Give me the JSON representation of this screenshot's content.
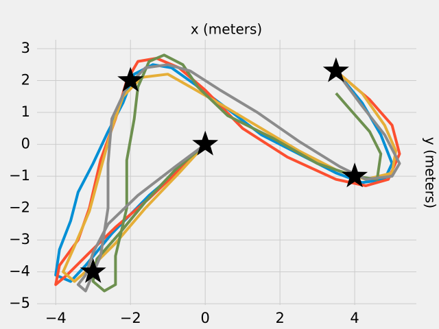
{
  "chart_data": {
    "type": "line",
    "title": "x (meters)",
    "y_label": "y (meters)",
    "xlim": [
      -4.5,
      5.65
    ],
    "ylim": [
      -5.04,
      3.28
    ],
    "xticks": [
      {
        "value": -4,
        "label": "−4"
      },
      {
        "value": -2,
        "label": "−2"
      },
      0,
      2,
      4
    ],
    "yticks": [
      {
        "value": -5,
        "label": "−5"
      },
      {
        "value": -4,
        "label": "−4"
      },
      {
        "value": -3,
        "label": "−3"
      },
      {
        "value": -2,
        "label": "−2"
      },
      {
        "value": -1,
        "label": "−1"
      },
      0,
      1,
      2,
      3
    ],
    "grid": true,
    "series": [
      {
        "color": "#008fd5",
        "x": [
          0,
          -0.5,
          -1.5,
          -2.5,
          -3.2,
          -3.6,
          -4,
          -3.9,
          -3.6,
          -3.4,
          -3.0,
          -2.6,
          -2.2,
          -1.9,
          -1.4,
          -0.9,
          -0.3,
          0.5,
          1.5,
          2.5,
          3.5,
          4.2,
          4.8,
          5.0,
          4.7,
          4.2,
          3.5
        ],
        "values": [
          0,
          -0.6,
          -1.6,
          -2.8,
          -3.8,
          -4.3,
          -4.1,
          -3.3,
          -2.4,
          -1.5,
          -0.6,
          0.4,
          1.3,
          2.2,
          2.5,
          2.4,
          1.9,
          1.2,
          0.3,
          -0.3,
          -0.9,
          -1.2,
          -1.1,
          -0.6,
          0.3,
          1.3,
          2.3
        ]
      },
      {
        "color": "#fc4f30",
        "x": [
          0,
          -0.6,
          -1.5,
          -2.4,
          -3.1,
          -3.7,
          -4.0,
          -3.9,
          -3.4,
          -3.1,
          -2.8,
          -2.4,
          -2.1,
          -1.8,
          -1.3,
          -0.7,
          0,
          1,
          2.2,
          3.5,
          4.3,
          4.9,
          5.2,
          5.0,
          4.4,
          3.5
        ],
        "values": [
          0,
          -0.7,
          -1.7,
          -2.6,
          -3.4,
          -4.1,
          -4.4,
          -3.8,
          -3.0,
          -2.0,
          -0.5,
          0.8,
          2.0,
          2.6,
          2.7,
          2.4,
          1.7,
          0.5,
          -0.4,
          -1.1,
          -1.3,
          -1.1,
          -0.3,
          0.6,
          1.4,
          2.3
        ]
      },
      {
        "color": "#e5ae38",
        "x": [
          0,
          -0.7,
          -1.6,
          -2.4,
          -3.0,
          -3.5,
          -3.8,
          -3.5,
          -3.1,
          -2.8,
          -2.5,
          -2.2,
          -1.7,
          -1.0,
          -0.4,
          0.5,
          1.5,
          2.5,
          3.5,
          4.3,
          5.0,
          5.1,
          4.8,
          4.2,
          3.5
        ],
        "values": [
          0,
          -0.9,
          -2.0,
          -3.1,
          -3.8,
          -4.3,
          -4.0,
          -3.2,
          -2.1,
          -0.8,
          0.5,
          1.5,
          2.1,
          2.2,
          1.8,
          1.2,
          0.5,
          -0.2,
          -0.8,
          -1.1,
          -0.9,
          -0.2,
          0.6,
          1.6,
          2.3
        ]
      },
      {
        "color": "#6d904f",
        "x": [
          0,
          -0.8,
          -1.6,
          -2.3,
          -2.9,
          -3.0,
          -2.7,
          -2.4,
          -2.4,
          -2.1,
          -2.1,
          -1.9,
          -1.8,
          -1.5,
          -1.1,
          -0.6,
          -0.2,
          0.6,
          1.8,
          3.0,
          4.0,
          4.6,
          4.7,
          4.4,
          3.8,
          3.5
        ],
        "values": [
          0,
          -0.8,
          -1.8,
          -2.8,
          -3.6,
          -4.3,
          -4.6,
          -4.4,
          -3.5,
          -2.0,
          -0.5,
          0.8,
          1.8,
          2.6,
          2.8,
          2.5,
          1.8,
          0.9,
          0.2,
          -0.6,
          -1.0,
          -1.1,
          -0.3,
          0.4,
          1.2,
          1.6
        ]
      },
      {
        "color": "#8b8b8b",
        "x": [
          0,
          -0.8,
          -1.8,
          -2.6,
          -3.0,
          -3.2,
          -3.4,
          -3.2,
          -2.8,
          -2.6,
          -2.6,
          -2.5,
          -2.1,
          -1.6,
          -1,
          -0.4,
          0.4,
          1.4,
          2.5,
          3.6,
          4.3,
          5.0,
          5.2,
          4.8,
          4.2,
          3.5
        ],
        "values": [
          0,
          -0.7,
          -1.6,
          -2.5,
          -3.4,
          -4.1,
          -4.4,
          -4.6,
          -3.5,
          -2.0,
          -0.6,
          0.8,
          1.8,
          2.4,
          2.5,
          2.3,
          1.7,
          1.0,
          0.1,
          -0.7,
          -1.1,
          -1.0,
          -0.6,
          0.3,
          1.2,
          2.3
        ]
      }
    ],
    "markers": {
      "color": "#000000",
      "x": [
        0,
        -3,
        -2,
        4,
        3.5
      ],
      "values": [
        0,
        -4,
        2,
        -1,
        2.3
      ]
    }
  }
}
